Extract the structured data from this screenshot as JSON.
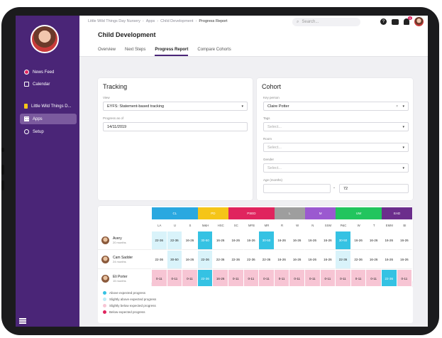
{
  "sidebar": {
    "items": [
      {
        "label": "News Feed",
        "icon": "news-feed-icon"
      },
      {
        "label": "Calendar",
        "icon": "calendar-icon"
      },
      {
        "label": "Little Wild Things D...",
        "icon": "nursery-icon"
      },
      {
        "label": "Apps",
        "icon": "apps-grid-icon"
      },
      {
        "label": "Setup",
        "icon": "gear-icon"
      }
    ]
  },
  "header": {
    "breadcrumbs": [
      "Little Wild Things Day Nursery",
      "Apps",
      "Child Development",
      "Progress Report"
    ],
    "search_placeholder": "Search...",
    "notification_count": "9"
  },
  "page": {
    "title": "Child Development",
    "tabs": [
      "Overview",
      "Next Steps",
      "Progress Report",
      "Compare Cohorts"
    ],
    "active_tab": "Progress Report"
  },
  "tracking": {
    "title": "Tracking",
    "view_label": "View",
    "view_value": "EYFS: Statement-based tracking",
    "progress_label": "Progress as of",
    "progress_value": "14/11/2019"
  },
  "cohort": {
    "title": "Cohort",
    "key_person_label": "Key person",
    "key_person_value": "Claire Potter",
    "tags_label": "Tags",
    "tags_placeholder": "Select...",
    "room_label": "Room",
    "room_placeholder": "Select...",
    "gender_label": "Gender",
    "gender_placeholder": "Select...",
    "age_label": "Age (months)",
    "age_from": "",
    "age_sep": "-",
    "age_to": "72"
  },
  "grid": {
    "groups": [
      {
        "label": "CL",
        "color": "#2aa8e0",
        "span": 3
      },
      {
        "label": "PD",
        "color": "#f5c518",
        "span": 2
      },
      {
        "label": "PSED",
        "color": "#e0245e",
        "span": 3
      },
      {
        "label": "L",
        "color": "#9e9e9e",
        "span": 2
      },
      {
        "label": "M",
        "color": "#9b59d0",
        "span": 2
      },
      {
        "label": "UW",
        "color": "#22c55e",
        "span": 3
      },
      {
        "label": "EAD",
        "color": "#6b2e8c",
        "span": 2
      }
    ],
    "subheads": [
      "LA",
      "U",
      "S",
      "M&H",
      "HSC",
      "SC",
      "MFB",
      "MR",
      "R",
      "W",
      "N",
      "SSM",
      "P&C",
      "W",
      "T",
      "EMM",
      "BI"
    ],
    "children": [
      {
        "name": "Avery",
        "age": "20 months",
        "cells": [
          [
            "22-36",
            "l"
          ],
          [
            "22-36",
            "l"
          ],
          [
            "16-26",
            "w"
          ],
          [
            "30-50",
            "c"
          ],
          [
            "16-26",
            "w"
          ],
          [
            "16-26",
            "w"
          ],
          [
            "16-26",
            "w"
          ],
          [
            "30-50",
            "c"
          ],
          [
            "16-26",
            "w"
          ],
          [
            "16-26",
            "w"
          ],
          [
            "16-26",
            "w"
          ],
          [
            "16-26",
            "w"
          ],
          [
            "30-50",
            "c"
          ],
          [
            "16-26",
            "w"
          ],
          [
            "16-26",
            "w"
          ],
          [
            "16-26",
            "w"
          ],
          [
            "16-26",
            "w"
          ]
        ]
      },
      {
        "name": "Cam Sadder",
        "age": "24 months",
        "cells": [
          [
            "22-36",
            "w"
          ],
          [
            "30-50",
            "l"
          ],
          [
            "16-26",
            "w"
          ],
          [
            "22-36",
            "l"
          ],
          [
            "22-36",
            "w"
          ],
          [
            "22-36",
            "w"
          ],
          [
            "22-36",
            "w"
          ],
          [
            "22-36",
            "w"
          ],
          [
            "16-26",
            "w"
          ],
          [
            "16-26",
            "w"
          ],
          [
            "16-26",
            "w"
          ],
          [
            "16-26",
            "w"
          ],
          [
            "22-36",
            "l"
          ],
          [
            "22-36",
            "w"
          ],
          [
            "16-26",
            "w"
          ],
          [
            "16-26",
            "w"
          ],
          [
            "16-26",
            "w"
          ]
        ]
      },
      {
        "name": "Eli Porter",
        "age": "15 months",
        "cells": [
          [
            "0-11",
            "p"
          ],
          [
            "0-11",
            "p"
          ],
          [
            "0-11",
            "p"
          ],
          [
            "22-36",
            "c"
          ],
          [
            "16-26",
            "p"
          ],
          [
            "0-11",
            "p"
          ],
          [
            "0-11",
            "p"
          ],
          [
            "0-11",
            "p"
          ],
          [
            "0-11",
            "p"
          ],
          [
            "0-11",
            "p"
          ],
          [
            "0-11",
            "p"
          ],
          [
            "0-11",
            "p"
          ],
          [
            "0-11",
            "p"
          ],
          [
            "0-11",
            "p"
          ],
          [
            "0-11",
            "p"
          ],
          [
            "22-36",
            "c"
          ],
          [
            "0-11",
            "p"
          ]
        ]
      }
    ],
    "status_colors": {
      "c": "#35c2e3",
      "l": "#d9f3fa",
      "w": "#ffffff",
      "p": "#f7c5d4"
    }
  },
  "legend": [
    {
      "label": "Above expected progress",
      "color": "#35c2e3"
    },
    {
      "label": "Slightly above expected progress",
      "color": "#bdeaf5"
    },
    {
      "label": "Slightly below expected progress",
      "color": "#f7c5d4"
    },
    {
      "label": "Below expected progress",
      "color": "#e0245e"
    }
  ]
}
